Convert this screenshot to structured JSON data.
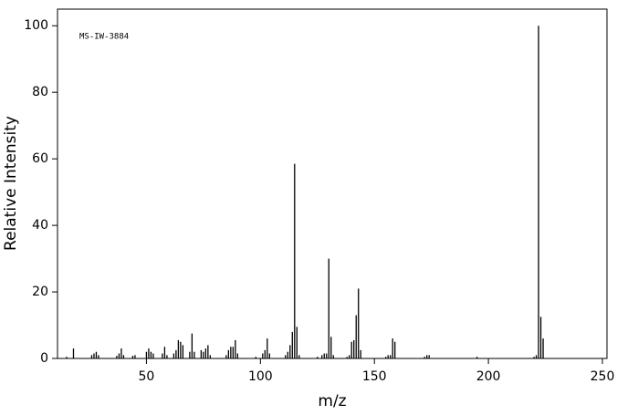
{
  "chart_data": {
    "type": "stem",
    "annotation": "MS-IW-3884",
    "x_label": "m/z",
    "y_label": "Relative Intensity",
    "color": "#000000",
    "x": [
      15,
      18,
      26,
      27,
      28,
      29,
      37,
      38,
      39,
      40,
      44,
      45,
      50,
      51,
      52,
      53,
      57,
      58,
      59,
      62,
      63,
      64,
      65,
      66,
      69,
      70,
      71,
      74,
      75,
      76,
      77,
      78,
      85,
      86,
      87,
      88,
      89,
      90,
      98,
      101,
      102,
      103,
      104,
      111,
      112,
      113,
      114,
      115,
      116,
      117,
      125,
      127,
      128,
      129,
      130,
      131,
      132,
      138,
      139,
      140,
      141,
      142,
      143,
      144,
      155,
      156,
      157,
      158,
      159,
      172,
      173,
      174,
      195,
      220,
      221,
      222,
      223,
      224
    ],
    "values": [
      0.5,
      3,
      1,
      1.5,
      2,
      1,
      0.8,
      1.5,
      3,
      1,
      0.8,
      1,
      2,
      3,
      2,
      1.5,
      1.5,
      3.5,
      1,
      1.5,
      2.5,
      5.5,
      5,
      4,
      2,
      7.5,
      2,
      2.5,
      2,
      3,
      4,
      1,
      1,
      2.5,
      3.5,
      3.5,
      5.5,
      1.5,
      0.5,
      1.5,
      2.5,
      6,
      1.5,
      1,
      2,
      4,
      8,
      58.5,
      9.5,
      1,
      0.5,
      1,
      1.5,
      1.5,
      30,
      6.5,
      1,
      0.5,
      1,
      5,
      5.5,
      13,
      21,
      2.5,
      0.5,
      1,
      1,
      6,
      5,
      0.5,
      1,
      1,
      0.5,
      0.5,
      1,
      100,
      12.5,
      6
    ],
    "xlim": [
      11,
      252
    ],
    "xticks": [
      50,
      100,
      150,
      200,
      250
    ],
    "ylim": [
      0,
      105
    ],
    "yticks": [
      0,
      20,
      40,
      60,
      80,
      100
    ]
  }
}
